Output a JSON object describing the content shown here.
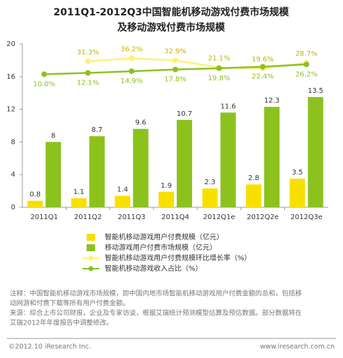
{
  "chart_data": {
    "type": "bar",
    "title": [
      "2011Q1-2012Q3中国智能机移动游戏付费市场规模",
      "及移动游戏付费市场规模"
    ],
    "categories": [
      "2011Q1",
      "2011Q2",
      "2011Q3",
      "2011Q4",
      "2012Q1e",
      "2012Q2e",
      "2012Q3e"
    ],
    "ylim": [
      0,
      20
    ],
    "yticks": [
      0,
      4,
      8,
      12,
      16,
      20
    ],
    "y2lim": [
      -210,
      60
    ],
    "legend": "bottom",
    "series": [
      {
        "name": "智能机移动游戏用户付费规模（亿元）",
        "type": "bar",
        "color": "#f7e000",
        "values": [
          0.8,
          1.1,
          1.4,
          1.9,
          2.3,
          2.8,
          3.5
        ]
      },
      {
        "name": "移动游戏用户付费市场规模（亿元）",
        "type": "bar",
        "color": "#8cc21e",
        "values": [
          8,
          8.7,
          9.6,
          10.7,
          11.6,
          12.3,
          13.5
        ]
      },
      {
        "name": "智能机移动游戏用户付费规模环比增长率（%）",
        "type": "line",
        "axis": "y2",
        "color": "#fff07a",
        "label_color": "#c9b400",
        "values": [
          null,
          31.3,
          36.2,
          32.9,
          21.1,
          19.6,
          28.7
        ],
        "value_labels": [
          null,
          "31.3%",
          "36.2%",
          "32.9%",
          "21.1%",
          "19.6%",
          "28.7%"
        ]
      },
      {
        "name": "智能机移动游戏收入占比（%）",
        "type": "line",
        "axis": "y2",
        "color": "#8cc21e",
        "label_color": "#8cc21e",
        "values": [
          10.0,
          12.1,
          14.9,
          17.8,
          19.8,
          22.4,
          26.2
        ],
        "value_labels": [
          "10.0%",
          "12.1%",
          "14.9%",
          "17.8%",
          "19.8%",
          "22.4%",
          "26.2%"
        ]
      }
    ],
    "notes": [
      "注释：中国智能机移动游戏市场规模，即中国内地市场智能机移动游戏用户付费金额的总和，包括移",
      "动网游和付费下载等所有用户付费金额。",
      "来源：综合上市公司财报，企业及专家访谈，根据艾瑞统计预测模型估算及预估数据。部分数据将在",
      "艾瑞2012年年度报告中调整修改。"
    ],
    "copyright": "©2012.10 iResearch Inc.",
    "website": "www.iresearch.com.cn"
  }
}
